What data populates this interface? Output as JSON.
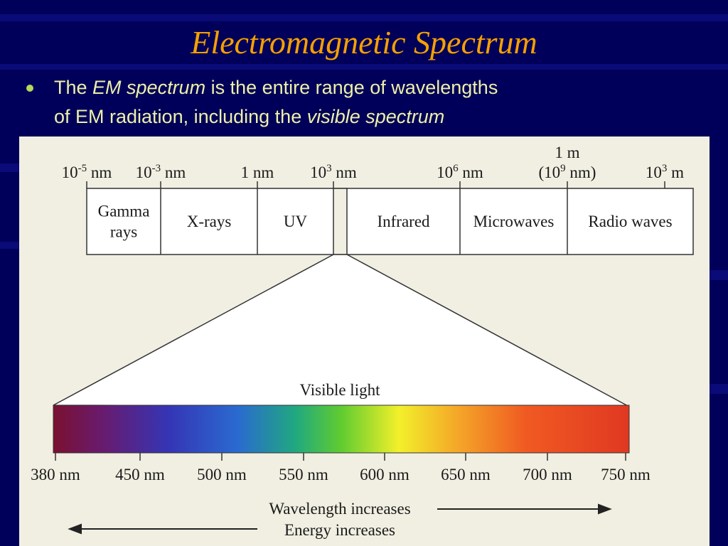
{
  "title": "Electromagnetic Spectrum",
  "bullet": [
    [
      {
        "text": "The "
      },
      {
        "text": "EM spectrum",
        "italic": true
      },
      {
        "text": " is the entire range of wavelengths"
      }
    ],
    [
      {
        "text": "of EM radiation, including the "
      },
      {
        "text": "visible spectrum",
        "italic": true
      }
    ]
  ],
  "diagram": {
    "scale_note": "1 m",
    "scale_labels": [
      [
        {
          "text": "10"
        },
        {
          "text": "-5",
          "sup": true
        },
        {
          "text": " nm"
        }
      ],
      [
        {
          "text": "10"
        },
        {
          "text": "-3",
          "sup": true
        },
        {
          "text": " nm"
        }
      ],
      [
        {
          "text": "1 nm"
        }
      ],
      [
        {
          "text": "10"
        },
        {
          "text": "3",
          "sup": true
        },
        {
          "text": " nm"
        }
      ],
      [
        {
          "text": "10"
        },
        {
          "text": "6",
          "sup": true
        },
        {
          "text": " nm"
        }
      ],
      [
        {
          "text": "(10"
        },
        {
          "text": "9",
          "sup": true
        },
        {
          "text": " nm)"
        }
      ],
      [
        {
          "text": "10"
        },
        {
          "text": "3",
          "sup": true
        },
        {
          "text": " m"
        }
      ]
    ],
    "bands": [
      [
        "Gamma",
        "rays"
      ],
      [
        "X-rays"
      ],
      [
        "UV"
      ],
      [
        "Infrared"
      ],
      [
        "Microwaves"
      ],
      [
        "Radio waves"
      ]
    ],
    "visible_label": "Visible light",
    "visible_ticks": [
      "380 nm",
      "450 nm",
      "500 nm",
      "550 nm",
      "600 nm",
      "650 nm",
      "700 nm",
      "750 nm"
    ],
    "wavelength_arrow": "Wavelength increases",
    "energy_arrow": "Energy increases"
  }
}
